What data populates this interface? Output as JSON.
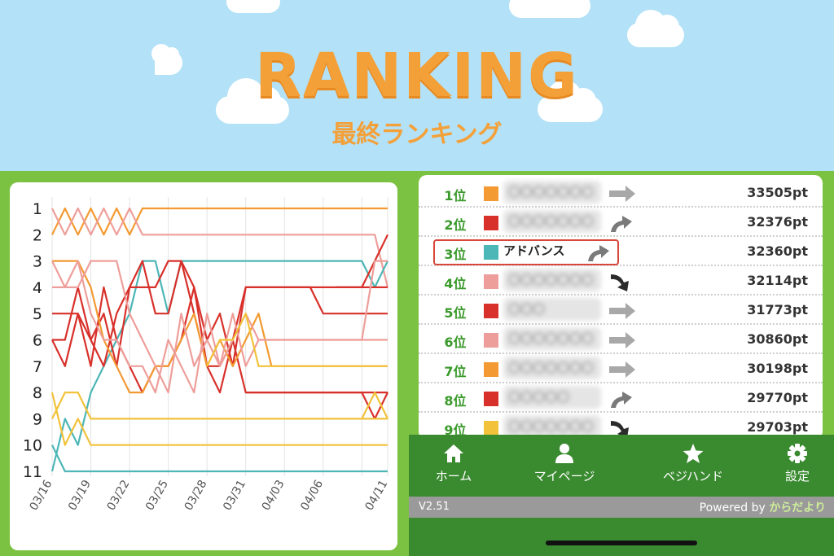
{
  "header": {
    "title": "RANKING",
    "subtitle": "最終ランキング"
  },
  "colors": {
    "orange": "#f39a32",
    "pink": "#ee9e9a",
    "teal": "#4db6b6",
    "red": "#d8302a",
    "yellow": "#f2c23a",
    "brand_green": "#3a8a30",
    "rank_green": "#3b9a2c"
  },
  "chart_data": {
    "type": "line",
    "x": [
      "03/16",
      "03/19",
      "03/22",
      "03/25",
      "03/28",
      "03/31",
      "04/03",
      "04/06",
      "04/11"
    ],
    "y_ticks": [
      1,
      2,
      3,
      4,
      5,
      6,
      7,
      8,
      9,
      10,
      11
    ],
    "y_reversed": true,
    "xlim": [
      0,
      26
    ],
    "ylim": [
      1,
      11
    ],
    "grid": true,
    "series": [
      {
        "color": "orange",
        "points": [
          [
            0,
            2
          ],
          [
            1,
            1
          ],
          [
            2,
            2
          ],
          [
            3,
            1
          ],
          [
            4,
            2
          ],
          [
            5,
            1
          ],
          [
            6,
            2
          ],
          [
            7,
            1
          ],
          [
            26,
            1
          ]
        ]
      },
      {
        "color": "pink",
        "points": [
          [
            0,
            1
          ],
          [
            1,
            2
          ],
          [
            2,
            1
          ],
          [
            3,
            2
          ],
          [
            4,
            1
          ],
          [
            5,
            2
          ],
          [
            6,
            1
          ],
          [
            7,
            2
          ],
          [
            25,
            2
          ],
          [
            26,
            4
          ]
        ]
      },
      {
        "color": "teal",
        "points": [
          [
            0,
            10
          ],
          [
            1,
            11
          ],
          [
            26,
            11
          ]
        ]
      },
      {
        "color": "teal",
        "points": [
          [
            0,
            11
          ],
          [
            1,
            9
          ],
          [
            2,
            10
          ],
          [
            3,
            8
          ],
          [
            4,
            7
          ],
          [
            5,
            6
          ],
          [
            6,
            5
          ],
          [
            7,
            3
          ],
          [
            8,
            3
          ],
          [
            9,
            5
          ],
          [
            10,
            3
          ],
          [
            24,
            3
          ],
          [
            25,
            4
          ],
          [
            26,
            3
          ]
        ]
      },
      {
        "color": "red",
        "points": [
          [
            0,
            6
          ],
          [
            1,
            6
          ],
          [
            2,
            4
          ],
          [
            3,
            6
          ],
          [
            4,
            7
          ],
          [
            5,
            5
          ],
          [
            6,
            4
          ],
          [
            7,
            3
          ],
          [
            8,
            5
          ],
          [
            9,
            5
          ],
          [
            10,
            3
          ],
          [
            11,
            5
          ],
          [
            12,
            7
          ],
          [
            13,
            7
          ],
          [
            14,
            6
          ],
          [
            15,
            8
          ],
          [
            26,
            8
          ]
        ]
      },
      {
        "color": "red",
        "points": [
          [
            0,
            5
          ],
          [
            2,
            5
          ],
          [
            3,
            6
          ],
          [
            4,
            5
          ],
          [
            5,
            7
          ],
          [
            6,
            4
          ],
          [
            7,
            4
          ],
          [
            8,
            4
          ],
          [
            9,
            3
          ],
          [
            10,
            3
          ],
          [
            11,
            4
          ],
          [
            12,
            7
          ],
          [
            13,
            8
          ],
          [
            14,
            6
          ],
          [
            15,
            4
          ],
          [
            20,
            4
          ],
          [
            21,
            5
          ],
          [
            26,
            5
          ]
        ]
      },
      {
        "color": "red",
        "points": [
          [
            0,
            6
          ],
          [
            1,
            7
          ],
          [
            2,
            5
          ],
          [
            3,
            7
          ],
          [
            4,
            4
          ],
          [
            5,
            6
          ],
          [
            6,
            7
          ],
          [
            7,
            8
          ],
          [
            8,
            7
          ],
          [
            9,
            7
          ],
          [
            10,
            6
          ],
          [
            11,
            4
          ],
          [
            12,
            6
          ],
          [
            13,
            5
          ],
          [
            14,
            7
          ],
          [
            15,
            4
          ],
          [
            20,
            4
          ],
          [
            21,
            4
          ],
          [
            26,
            4
          ]
        ]
      },
      {
        "color": "red",
        "points": [
          [
            15,
            8
          ],
          [
            24,
            8
          ],
          [
            25,
            9
          ],
          [
            26,
            8
          ]
        ]
      },
      {
        "color": "red",
        "points": [
          [
            22,
            4
          ],
          [
            24,
            4
          ],
          [
            25,
            3
          ],
          [
            26,
            2
          ]
        ]
      },
      {
        "color": "orange",
        "points": [
          [
            0,
            3
          ],
          [
            1,
            3
          ],
          [
            2,
            3
          ],
          [
            3,
            4
          ],
          [
            4,
            6
          ],
          [
            5,
            7
          ],
          [
            6,
            8
          ],
          [
            7,
            8
          ],
          [
            8,
            7
          ],
          [
            9,
            7
          ],
          [
            10,
            6
          ],
          [
            11,
            5
          ],
          [
            12,
            7
          ],
          [
            13,
            6
          ],
          [
            14,
            7
          ],
          [
            15,
            6
          ],
          [
            16,
            5
          ],
          [
            17,
            7
          ],
          [
            26,
            7
          ]
        ]
      },
      {
        "color": "pink",
        "points": [
          [
            0,
            4
          ],
          [
            2,
            4
          ],
          [
            3,
            3
          ],
          [
            4,
            3
          ],
          [
            5,
            3
          ],
          [
            6,
            5
          ],
          [
            7,
            6
          ],
          [
            8,
            7
          ],
          [
            9,
            8
          ],
          [
            10,
            5
          ],
          [
            11,
            7
          ],
          [
            12,
            6
          ],
          [
            13,
            7
          ],
          [
            14,
            5
          ],
          [
            15,
            7
          ],
          [
            16,
            6
          ],
          [
            26,
            6
          ]
        ]
      },
      {
        "color": "pink",
        "points": [
          [
            0,
            3
          ],
          [
            1,
            4
          ],
          [
            2,
            3
          ],
          [
            3,
            5
          ],
          [
            4,
            6
          ],
          [
            5,
            6
          ],
          [
            6,
            7
          ],
          [
            7,
            7
          ],
          [
            8,
            8
          ],
          [
            9,
            6
          ],
          [
            10,
            7
          ],
          [
            11,
            8
          ],
          [
            12,
            5
          ],
          [
            13,
            7
          ],
          [
            14,
            6
          ],
          [
            15,
            5
          ],
          [
            16,
            6
          ],
          [
            24,
            6
          ],
          [
            25,
            3
          ],
          [
            26,
            3
          ]
        ]
      },
      {
        "color": "yellow",
        "points": [
          [
            0,
            9
          ],
          [
            1,
            8
          ],
          [
            2,
            8
          ],
          [
            3,
            9
          ],
          [
            26,
            9
          ]
        ]
      },
      {
        "color": "yellow",
        "points": [
          [
            0,
            8
          ],
          [
            1,
            10
          ],
          [
            2,
            9
          ],
          [
            3,
            10
          ],
          [
            26,
            10
          ]
        ]
      },
      {
        "color": "yellow",
        "points": [
          [
            12,
            7
          ],
          [
            13,
            6
          ],
          [
            14,
            6
          ],
          [
            15,
            5
          ],
          [
            16,
            7
          ],
          [
            17,
            7
          ],
          [
            26,
            7
          ]
        ]
      },
      {
        "color": "yellow",
        "points": [
          [
            24,
            9
          ],
          [
            25,
            8
          ],
          [
            26,
            9
          ]
        ]
      }
    ]
  },
  "ranking": [
    {
      "pos": "1位",
      "color": "orange",
      "name": "〇〇〇〇〇〇〇",
      "blurred": true,
      "arrow": "same",
      "pts": "33505pt"
    },
    {
      "pos": "2位",
      "color": "red",
      "name": "〇〇〇〇〇〇〇",
      "blurred": true,
      "arrow": "up",
      "pts": "32376pt"
    },
    {
      "pos": "3位",
      "color": "teal",
      "name": "アドバンス",
      "blurred": false,
      "arrow": "up",
      "pts": "32360pt"
    },
    {
      "pos": "4位",
      "color": "pink",
      "name": "〇〇〇〇〇〇〇",
      "blurred": true,
      "arrow": "down",
      "pts": "32114pt"
    },
    {
      "pos": "5位",
      "color": "red",
      "name": "〇〇〇",
      "blurred": true,
      "arrow": "same",
      "pts": "31773pt"
    },
    {
      "pos": "6位",
      "color": "pink",
      "name": "〇〇〇〇〇〇〇",
      "blurred": true,
      "arrow": "same",
      "pts": "30860pt"
    },
    {
      "pos": "7位",
      "color": "orange",
      "name": "〇〇〇〇〇〇〇",
      "blurred": true,
      "arrow": "same",
      "pts": "30198pt"
    },
    {
      "pos": "8位",
      "color": "red",
      "name": "〇〇〇〇〇",
      "blurred": true,
      "arrow": "up",
      "pts": "29770pt"
    },
    {
      "pos": "9位",
      "color": "yellow",
      "name": "〇〇〇〇〇〇〇",
      "blurred": true,
      "arrow": "down",
      "pts": "29703pt"
    }
  ],
  "nav": {
    "home": "ホーム",
    "mypage": "マイページ",
    "vegihand": "ベジハンド",
    "settings": "設定"
  },
  "footer": {
    "version": "V2.51",
    "powered_by": "Powered by",
    "brand": "からだより"
  }
}
